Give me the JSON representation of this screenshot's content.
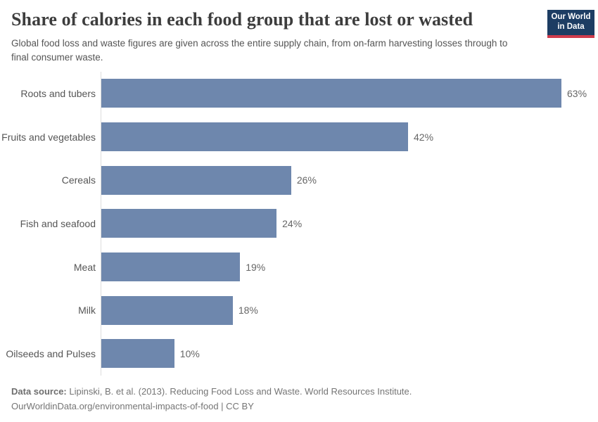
{
  "header": {
    "title": "Share of calories in each food group that are lost or wasted",
    "subtitle": "Global food loss and waste figures are given across the entire supply chain, from on-farm harvesting losses through to final consumer waste.",
    "logo": {
      "line1": "Our World",
      "line2": "in Data",
      "bg_color": "#1d3d63",
      "accent_color": "#cf3c4c"
    }
  },
  "chart_data": {
    "type": "bar",
    "orientation": "horizontal",
    "title": "Share of calories in each food group that are lost or wasted",
    "categories": [
      "Roots and tubers",
      "Fruits and vegetables",
      "Cereals",
      "Fish and seafood",
      "Meat",
      "Milk",
      "Oilseeds and Pulses"
    ],
    "values": [
      63,
      42,
      26,
      24,
      19,
      18,
      10
    ],
    "value_labels": [
      "63%",
      "42%",
      "26%",
      "24%",
      "19%",
      "18%",
      "10%"
    ],
    "unit": "%",
    "xlim": [
      0,
      63
    ],
    "grid": false,
    "legend": "none",
    "bar_color": "#6e87ad"
  },
  "footer": {
    "source_prefix": "Data source:",
    "source_text": " Lipinski, B. et al. (2013). Reducing Food Loss and Waste. World Resources Institute.",
    "license_line": "OurWorldinData.org/environmental-impacts-of-food | CC BY"
  }
}
